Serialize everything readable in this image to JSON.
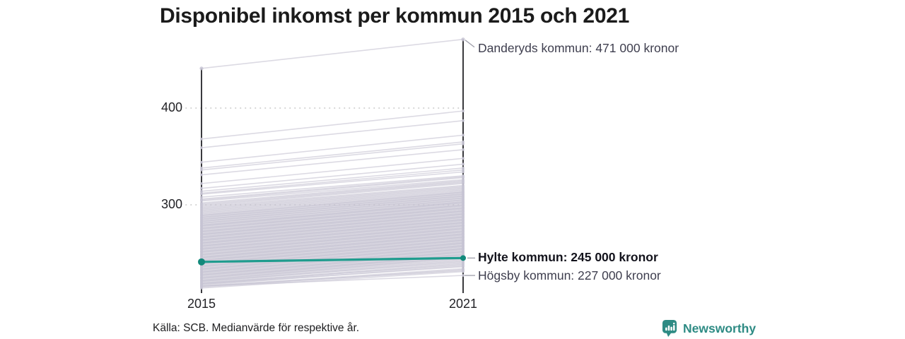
{
  "title": "Disponibel inkomst per kommun 2015 och 2021",
  "source": "Källa: SCB. Medianvärde för respektive år.",
  "branding": {
    "name": "Newsworthy",
    "icon": "newsworthy-chart-bubble-icon",
    "color": "#2e8b84"
  },
  "colors": {
    "highlight_line": "#1f9c8e",
    "highlight_dot": "#12897b",
    "background_line": "#c7c4d3",
    "axis": "#17171c",
    "grid": "#c3c3c3",
    "title_text": "#1b1b1b",
    "annotation_text": "#3e3e4e"
  },
  "chart_data": {
    "type": "line",
    "subtype": "slope",
    "title": "Disponibel inkomst per kommun 2015 och 2021",
    "x_labels": [
      "2015",
      "2021"
    ],
    "y_tick_labels": [
      "400",
      "300"
    ],
    "y_tick_values": [
      400,
      300
    ],
    "grid": "dotted-horizontal",
    "unit_note": "values in thousands of kronor",
    "annotations": [
      {
        "id": "danderyd",
        "label": "Danderyds kommun: 471 000 kronor",
        "value": 471,
        "highlighted": false
      },
      {
        "id": "hylte",
        "label": "Hylte kommun: 245 000 kronor",
        "value": 245,
        "highlighted": true
      },
      {
        "id": "hogsby",
        "label": "Högsby kommun: 227 000 kronor",
        "value": 227,
        "highlighted": false
      }
    ],
    "highlight_series": {
      "name": "Hylte kommun",
      "values": [
        241,
        245
      ]
    },
    "extremes": {
      "max_2015": 441,
      "max_2021": 471,
      "min_2015": 214,
      "min_2021": 227
    },
    "background_lines": [
      [
        441,
        471
      ],
      [
        368,
        397
      ],
      [
        359,
        387
      ],
      [
        344,
        372
      ],
      [
        338,
        365
      ],
      [
        336,
        363
      ],
      [
        331,
        357
      ],
      [
        322,
        348
      ],
      [
        317,
        342
      ],
      [
        314,
        338
      ],
      [
        312,
        336
      ],
      [
        311,
        334
      ],
      [
        308,
        330
      ],
      [
        306,
        329
      ],
      [
        305,
        328
      ],
      [
        304,
        326
      ],
      [
        302,
        325
      ],
      [
        301,
        324
      ],
      [
        300,
        323
      ],
      [
        299,
        322
      ],
      [
        298,
        320
      ],
      [
        297,
        319
      ],
      [
        296,
        318
      ],
      [
        295,
        317
      ],
      [
        294,
        316
      ],
      [
        293,
        315
      ],
      [
        292,
        314
      ],
      [
        291,
        313
      ],
      [
        290,
        312
      ],
      [
        289,
        311
      ],
      [
        289,
        313
      ],
      [
        288,
        310
      ],
      [
        287,
        309
      ],
      [
        287,
        311
      ],
      [
        286,
        308
      ],
      [
        285,
        307
      ],
      [
        285,
        309
      ],
      [
        284,
        306
      ],
      [
        283,
        305
      ],
      [
        283,
        307
      ],
      [
        282,
        304
      ],
      [
        281,
        303
      ],
      [
        281,
        305
      ],
      [
        280,
        302
      ],
      [
        279,
        301
      ],
      [
        279,
        303
      ],
      [
        278,
        300
      ],
      [
        278,
        302
      ],
      [
        277,
        299
      ],
      [
        276,
        298
      ],
      [
        276,
        300
      ],
      [
        275,
        297
      ],
      [
        275,
        299
      ],
      [
        274,
        296
      ],
      [
        273,
        295
      ],
      [
        273,
        297
      ],
      [
        272,
        294
      ],
      [
        272,
        296
      ],
      [
        271,
        293
      ],
      [
        270,
        292
      ],
      [
        270,
        294
      ],
      [
        269,
        291
      ],
      [
        269,
        293
      ],
      [
        268,
        290
      ],
      [
        267,
        289
      ],
      [
        267,
        291
      ],
      [
        266,
        288
      ],
      [
        266,
        290
      ],
      [
        265,
        287
      ],
      [
        264,
        286
      ],
      [
        264,
        288
      ],
      [
        263,
        285
      ],
      [
        263,
        287
      ],
      [
        262,
        284
      ],
      [
        261,
        283
      ],
      [
        261,
        285
      ],
      [
        260,
        282
      ],
      [
        260,
        284
      ],
      [
        259,
        281
      ],
      [
        258,
        280
      ],
      [
        258,
        282
      ],
      [
        257,
        279
      ],
      [
        257,
        281
      ],
      [
        256,
        278
      ],
      [
        255,
        277
      ],
      [
        255,
        279
      ],
      [
        254,
        276
      ],
      [
        254,
        278
      ],
      [
        253,
        275
      ],
      [
        252,
        274
      ],
      [
        252,
        276
      ],
      [
        251,
        273
      ],
      [
        251,
        275
      ],
      [
        250,
        272
      ],
      [
        249,
        271
      ],
      [
        249,
        273
      ],
      [
        248,
        270
      ],
      [
        248,
        272
      ],
      [
        247,
        269
      ],
      [
        246,
        268
      ],
      [
        246,
        270
      ],
      [
        245,
        267
      ],
      [
        245,
        269
      ],
      [
        244,
        266
      ],
      [
        243,
        265
      ],
      [
        243,
        267
      ],
      [
        242,
        264
      ],
      [
        242,
        266
      ],
      [
        241,
        263
      ],
      [
        240,
        262
      ],
      [
        240,
        264
      ],
      [
        239,
        261
      ],
      [
        239,
        263
      ],
      [
        238,
        260
      ],
      [
        237,
        259
      ],
      [
        237,
        261
      ],
      [
        236,
        258
      ],
      [
        236,
        260
      ],
      [
        235,
        257
      ],
      [
        234,
        256
      ],
      [
        234,
        258
      ],
      [
        233,
        255
      ],
      [
        233,
        257
      ],
      [
        232,
        254
      ],
      [
        231,
        253
      ],
      [
        231,
        255
      ],
      [
        230,
        252
      ],
      [
        230,
        254
      ],
      [
        229,
        251
      ],
      [
        228,
        250
      ],
      [
        228,
        252
      ],
      [
        227,
        249
      ],
      [
        227,
        251
      ],
      [
        226,
        248
      ],
      [
        225,
        247
      ],
      [
        225,
        249
      ],
      [
        224,
        246
      ],
      [
        224,
        248
      ],
      [
        223,
        245
      ],
      [
        222,
        244
      ],
      [
        222,
        246
      ],
      [
        221,
        243
      ],
      [
        221,
        241
      ],
      [
        220,
        242
      ],
      [
        219,
        240
      ],
      [
        219,
        238
      ],
      [
        218,
        239
      ],
      [
        218,
        236
      ],
      [
        217,
        237
      ],
      [
        216,
        234
      ],
      [
        216,
        232
      ],
      [
        215,
        233
      ],
      [
        214,
        231
      ],
      [
        216,
        227
      ]
    ]
  }
}
